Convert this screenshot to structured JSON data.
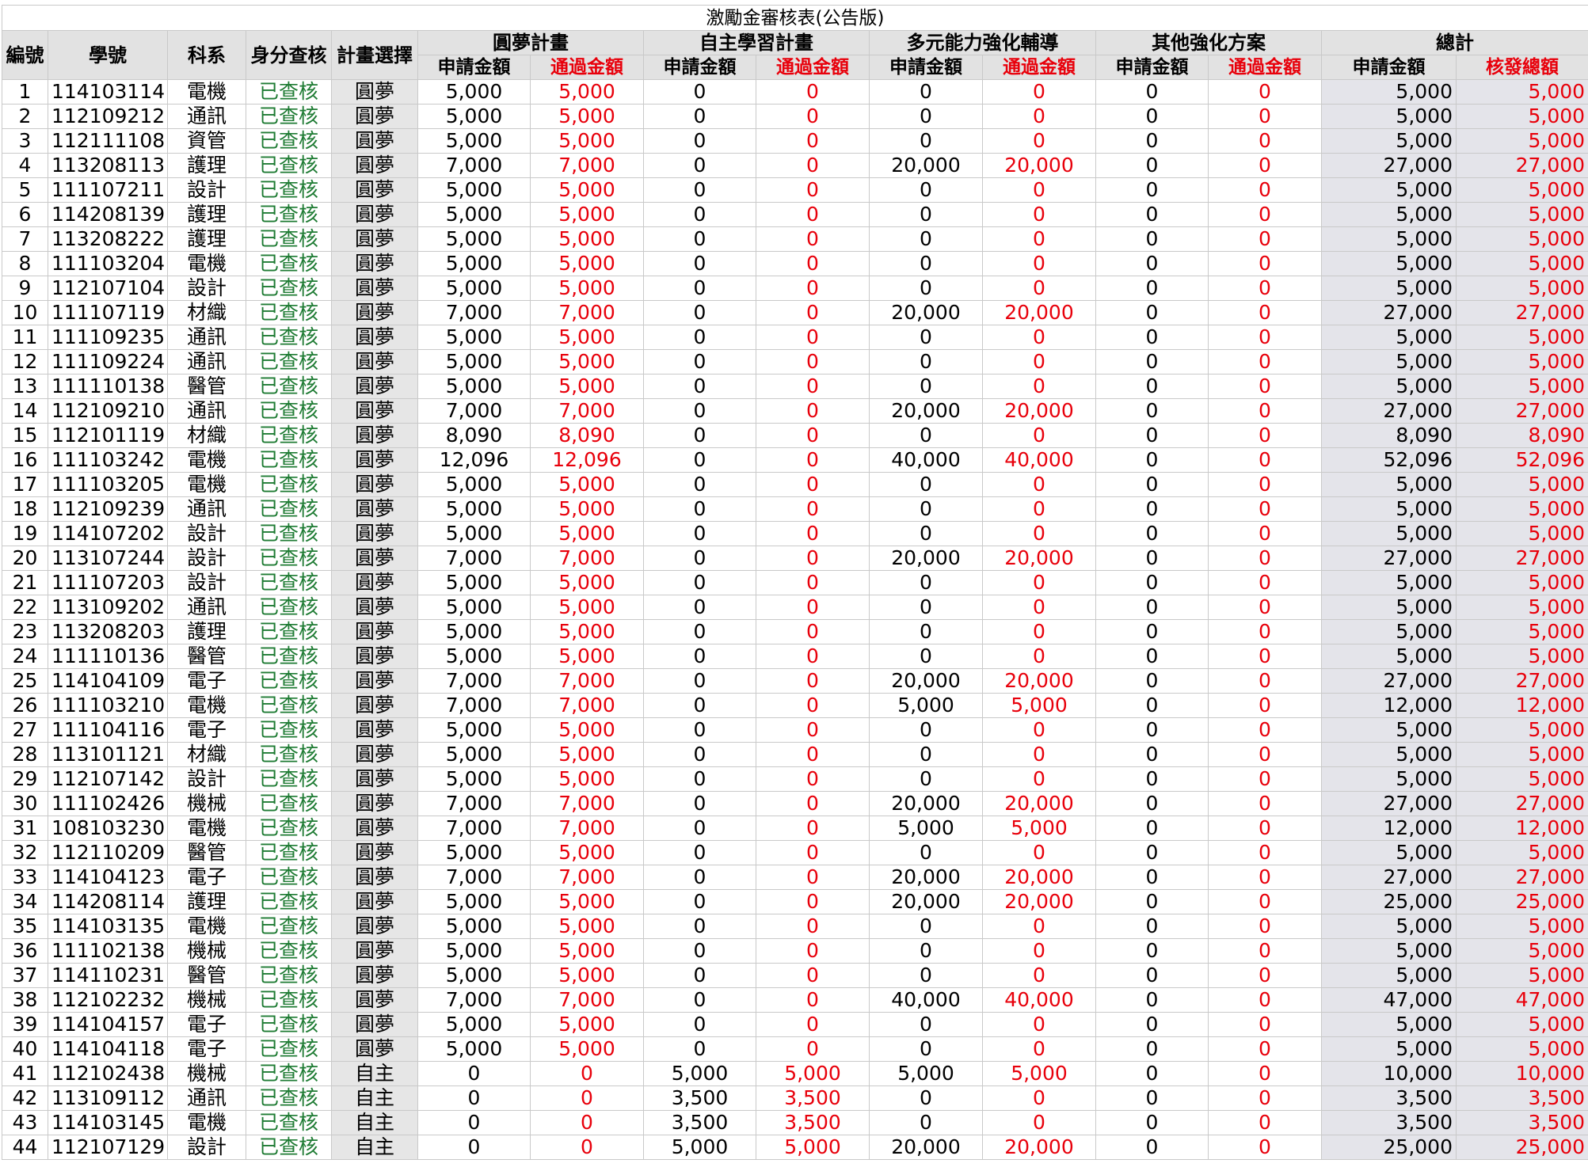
{
  "title": "激勵金審核表(公告版)",
  "headers": {
    "no": "編號",
    "student_id": "學號",
    "dept": "科系",
    "identity_check": "身分查核",
    "plan_choice": "計畫選擇",
    "groups": [
      "圓夢計畫",
      "自主學習計畫",
      "多元能力強化輔導",
      "其他強化方案",
      "總計"
    ],
    "apply": "申請金額",
    "passed": "通過金額",
    "approved_total": "核發總額"
  },
  "rows": [
    [
      "1",
      "114103114",
      "電機",
      "已查核",
      "圓夢",
      "5,000",
      "5,000",
      "0",
      "0",
      "0",
      "0",
      "0",
      "0",
      "5,000",
      "5,000"
    ],
    [
      "2",
      "112109212",
      "通訊",
      "已查核",
      "圓夢",
      "5,000",
      "5,000",
      "0",
      "0",
      "0",
      "0",
      "0",
      "0",
      "5,000",
      "5,000"
    ],
    [
      "3",
      "112111108",
      "資管",
      "已查核",
      "圓夢",
      "5,000",
      "5,000",
      "0",
      "0",
      "0",
      "0",
      "0",
      "0",
      "5,000",
      "5,000"
    ],
    [
      "4",
      "113208113",
      "護理",
      "已查核",
      "圓夢",
      "7,000",
      "7,000",
      "0",
      "0",
      "20,000",
      "20,000",
      "0",
      "0",
      "27,000",
      "27,000"
    ],
    [
      "5",
      "111107211",
      "設計",
      "已查核",
      "圓夢",
      "5,000",
      "5,000",
      "0",
      "0",
      "0",
      "0",
      "0",
      "0",
      "5,000",
      "5,000"
    ],
    [
      "6",
      "114208139",
      "護理",
      "已查核",
      "圓夢",
      "5,000",
      "5,000",
      "0",
      "0",
      "0",
      "0",
      "0",
      "0",
      "5,000",
      "5,000"
    ],
    [
      "7",
      "113208222",
      "護理",
      "已查核",
      "圓夢",
      "5,000",
      "5,000",
      "0",
      "0",
      "0",
      "0",
      "0",
      "0",
      "5,000",
      "5,000"
    ],
    [
      "8",
      "111103204",
      "電機",
      "已查核",
      "圓夢",
      "5,000",
      "5,000",
      "0",
      "0",
      "0",
      "0",
      "0",
      "0",
      "5,000",
      "5,000"
    ],
    [
      "9",
      "112107104",
      "設計",
      "已查核",
      "圓夢",
      "5,000",
      "5,000",
      "0",
      "0",
      "0",
      "0",
      "0",
      "0",
      "5,000",
      "5,000"
    ],
    [
      "10",
      "111107119",
      "材織",
      "已查核",
      "圓夢",
      "7,000",
      "7,000",
      "0",
      "0",
      "20,000",
      "20,000",
      "0",
      "0",
      "27,000",
      "27,000"
    ],
    [
      "11",
      "111109235",
      "通訊",
      "已查核",
      "圓夢",
      "5,000",
      "5,000",
      "0",
      "0",
      "0",
      "0",
      "0",
      "0",
      "5,000",
      "5,000"
    ],
    [
      "12",
      "111109224",
      "通訊",
      "已查核",
      "圓夢",
      "5,000",
      "5,000",
      "0",
      "0",
      "0",
      "0",
      "0",
      "0",
      "5,000",
      "5,000"
    ],
    [
      "13",
      "111110138",
      "醫管",
      "已查核",
      "圓夢",
      "5,000",
      "5,000",
      "0",
      "0",
      "0",
      "0",
      "0",
      "0",
      "5,000",
      "5,000"
    ],
    [
      "14",
      "112109210",
      "通訊",
      "已查核",
      "圓夢",
      "7,000",
      "7,000",
      "0",
      "0",
      "20,000",
      "20,000",
      "0",
      "0",
      "27,000",
      "27,000"
    ],
    [
      "15",
      "112101119",
      "材織",
      "已查核",
      "圓夢",
      "8,090",
      "8,090",
      "0",
      "0",
      "0",
      "0",
      "0",
      "0",
      "8,090",
      "8,090"
    ],
    [
      "16",
      "111103242",
      "電機",
      "已查核",
      "圓夢",
      "12,096",
      "12,096",
      "0",
      "0",
      "40,000",
      "40,000",
      "0",
      "0",
      "52,096",
      "52,096"
    ],
    [
      "17",
      "111103205",
      "電機",
      "已查核",
      "圓夢",
      "5,000",
      "5,000",
      "0",
      "0",
      "0",
      "0",
      "0",
      "0",
      "5,000",
      "5,000"
    ],
    [
      "18",
      "112109239",
      "通訊",
      "已查核",
      "圓夢",
      "5,000",
      "5,000",
      "0",
      "0",
      "0",
      "0",
      "0",
      "0",
      "5,000",
      "5,000"
    ],
    [
      "19",
      "114107202",
      "設計",
      "已查核",
      "圓夢",
      "5,000",
      "5,000",
      "0",
      "0",
      "0",
      "0",
      "0",
      "0",
      "5,000",
      "5,000"
    ],
    [
      "20",
      "113107244",
      "設計",
      "已查核",
      "圓夢",
      "7,000",
      "7,000",
      "0",
      "0",
      "20,000",
      "20,000",
      "0",
      "0",
      "27,000",
      "27,000"
    ],
    [
      "21",
      "111107203",
      "設計",
      "已查核",
      "圓夢",
      "5,000",
      "5,000",
      "0",
      "0",
      "0",
      "0",
      "0",
      "0",
      "5,000",
      "5,000"
    ],
    [
      "22",
      "113109202",
      "通訊",
      "已查核",
      "圓夢",
      "5,000",
      "5,000",
      "0",
      "0",
      "0",
      "0",
      "0",
      "0",
      "5,000",
      "5,000"
    ],
    [
      "23",
      "113208203",
      "護理",
      "已查核",
      "圓夢",
      "5,000",
      "5,000",
      "0",
      "0",
      "0",
      "0",
      "0",
      "0",
      "5,000",
      "5,000"
    ],
    [
      "24",
      "111110136",
      "醫管",
      "已查核",
      "圓夢",
      "5,000",
      "5,000",
      "0",
      "0",
      "0",
      "0",
      "0",
      "0",
      "5,000",
      "5,000"
    ],
    [
      "25",
      "114104109",
      "電子",
      "已查核",
      "圓夢",
      "7,000",
      "7,000",
      "0",
      "0",
      "20,000",
      "20,000",
      "0",
      "0",
      "27,000",
      "27,000"
    ],
    [
      "26",
      "111103210",
      "電機",
      "已查核",
      "圓夢",
      "7,000",
      "7,000",
      "0",
      "0",
      "5,000",
      "5,000",
      "0",
      "0",
      "12,000",
      "12,000"
    ],
    [
      "27",
      "111104116",
      "電子",
      "已查核",
      "圓夢",
      "5,000",
      "5,000",
      "0",
      "0",
      "0",
      "0",
      "0",
      "0",
      "5,000",
      "5,000"
    ],
    [
      "28",
      "113101121",
      "材織",
      "已查核",
      "圓夢",
      "5,000",
      "5,000",
      "0",
      "0",
      "0",
      "0",
      "0",
      "0",
      "5,000",
      "5,000"
    ],
    [
      "29",
      "112107142",
      "設計",
      "已查核",
      "圓夢",
      "5,000",
      "5,000",
      "0",
      "0",
      "0",
      "0",
      "0",
      "0",
      "5,000",
      "5,000"
    ],
    [
      "30",
      "111102426",
      "機械",
      "已查核",
      "圓夢",
      "7,000",
      "7,000",
      "0",
      "0",
      "20,000",
      "20,000",
      "0",
      "0",
      "27,000",
      "27,000"
    ],
    [
      "31",
      "108103230",
      "電機",
      "已查核",
      "圓夢",
      "7,000",
      "7,000",
      "0",
      "0",
      "5,000",
      "5,000",
      "0",
      "0",
      "12,000",
      "12,000"
    ],
    [
      "32",
      "112110209",
      "醫管",
      "已查核",
      "圓夢",
      "5,000",
      "5,000",
      "0",
      "0",
      "0",
      "0",
      "0",
      "0",
      "5,000",
      "5,000"
    ],
    [
      "33",
      "114104123",
      "電子",
      "已查核",
      "圓夢",
      "7,000",
      "7,000",
      "0",
      "0",
      "20,000",
      "20,000",
      "0",
      "0",
      "27,000",
      "27,000"
    ],
    [
      "34",
      "114208114",
      "護理",
      "已查核",
      "圓夢",
      "5,000",
      "5,000",
      "0",
      "0",
      "20,000",
      "20,000",
      "0",
      "0",
      "25,000",
      "25,000"
    ],
    [
      "35",
      "114103135",
      "電機",
      "已查核",
      "圓夢",
      "5,000",
      "5,000",
      "0",
      "0",
      "0",
      "0",
      "0",
      "0",
      "5,000",
      "5,000"
    ],
    [
      "36",
      "111102138",
      "機械",
      "已查核",
      "圓夢",
      "5,000",
      "5,000",
      "0",
      "0",
      "0",
      "0",
      "0",
      "0",
      "5,000",
      "5,000"
    ],
    [
      "37",
      "114110231",
      "醫管",
      "已查核",
      "圓夢",
      "5,000",
      "5,000",
      "0",
      "0",
      "0",
      "0",
      "0",
      "0",
      "5,000",
      "5,000"
    ],
    [
      "38",
      "112102232",
      "機械",
      "已查核",
      "圓夢",
      "7,000",
      "7,000",
      "0",
      "0",
      "40,000",
      "40,000",
      "0",
      "0",
      "47,000",
      "47,000"
    ],
    [
      "39",
      "114104157",
      "電子",
      "已查核",
      "圓夢",
      "5,000",
      "5,000",
      "0",
      "0",
      "0",
      "0",
      "0",
      "0",
      "5,000",
      "5,000"
    ],
    [
      "40",
      "114104118",
      "電子",
      "已查核",
      "圓夢",
      "5,000",
      "5,000",
      "0",
      "0",
      "0",
      "0",
      "0",
      "0",
      "5,000",
      "5,000"
    ],
    [
      "41",
      "112102438",
      "機械",
      "已查核",
      "自主",
      "0",
      "0",
      "5,000",
      "5,000",
      "5,000",
      "5,000",
      "0",
      "0",
      "10,000",
      "10,000"
    ],
    [
      "42",
      "113109112",
      "通訊",
      "已查核",
      "自主",
      "0",
      "0",
      "3,500",
      "3,500",
      "0",
      "0",
      "0",
      "0",
      "3,500",
      "3,500"
    ],
    [
      "43",
      "114103145",
      "電機",
      "已查核",
      "自主",
      "0",
      "0",
      "3,500",
      "3,500",
      "0",
      "0",
      "0",
      "0",
      "3,500",
      "3,500"
    ],
    [
      "44",
      "112107129",
      "設計",
      "已查核",
      "自主",
      "0",
      "0",
      "5,000",
      "5,000",
      "20,000",
      "20,000",
      "0",
      "0",
      "25,000",
      "25,000"
    ]
  ],
  "colors": {
    "passed_text": "#e8000b",
    "checked_text": "#1e7b33",
    "header_bg": "#e2e2e2",
    "grid": "#c9c9c9"
  }
}
